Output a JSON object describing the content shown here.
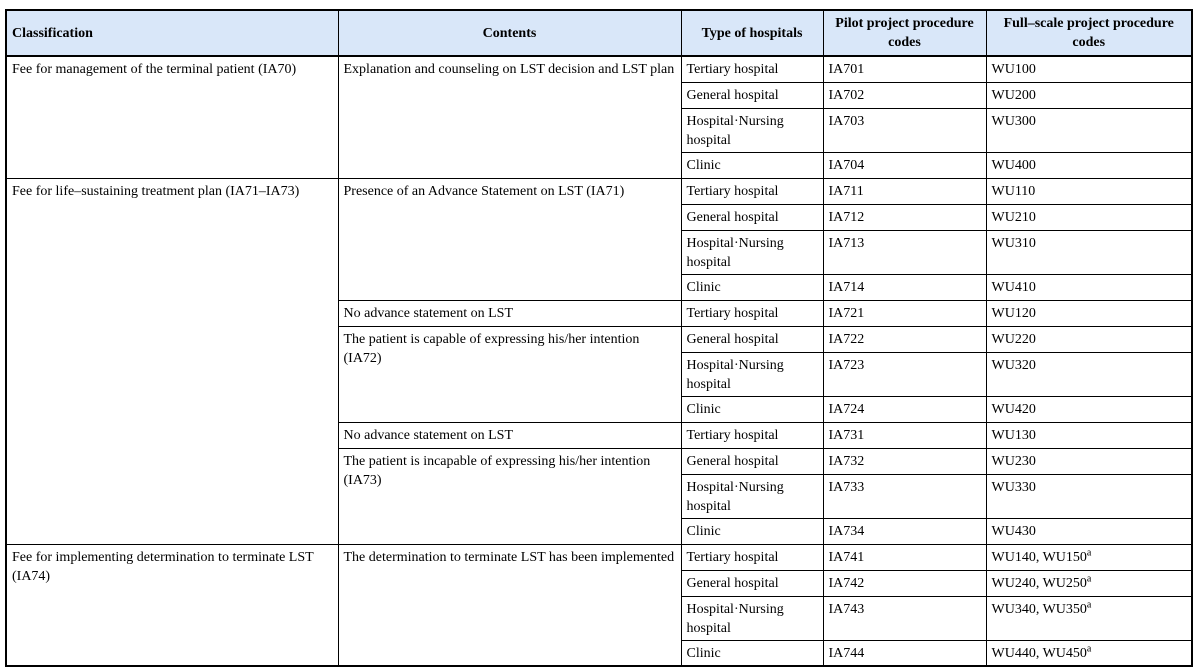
{
  "table": {
    "header_bg": "#d9e7f9",
    "border_color": "#000000",
    "headers": {
      "classification": "Classification",
      "contents": "Contents",
      "hospital_type": "Type of hospitals",
      "pilot_codes": "Pilot project procedure codes",
      "full_scale_codes": "Full–scale project procedure codes"
    },
    "classifications": [
      {
        "label": "Fee for management of the terminal patient (IA70)"
      },
      {
        "label": "Fee for life–sustaining treatment plan (IA71–IA73)"
      },
      {
        "label": "Fee for implementing determination to terminate LST (IA74)"
      }
    ],
    "contents_cells": [
      {
        "label": "Explanation and counseling on LST decision and LST plan"
      },
      {
        "label": "Presence of an Advance Statement on LST (IA71)"
      },
      {
        "label": "No advance statement on LST"
      },
      {
        "label": "The patient is capable of expressing his/her intention (IA72)"
      },
      {
        "label": "No advance statement on LST"
      },
      {
        "label": "The patient is incapable of expressing his/her intention (IA73)"
      },
      {
        "label": "The determination to terminate LST has been implemented"
      }
    ],
    "rows": [
      {
        "hospital": "Tertiary hospital",
        "pilot": "IA701",
        "full": "WU100",
        "full_sup": ""
      },
      {
        "hospital": "General hospital",
        "pilot": "IA702",
        "full": "WU200",
        "full_sup": ""
      },
      {
        "hospital": "Hospital·Nursing hospital",
        "pilot": "IA703",
        "full": "WU300",
        "full_sup": ""
      },
      {
        "hospital": "Clinic",
        "pilot": "IA704",
        "full": "WU400",
        "full_sup": ""
      },
      {
        "hospital": "Tertiary hospital",
        "pilot": "IA711",
        "full": "WU110",
        "full_sup": ""
      },
      {
        "hospital": "General hospital",
        "pilot": "IA712",
        "full": "WU210",
        "full_sup": ""
      },
      {
        "hospital": "Hospital·Nursing hospital",
        "pilot": "IA713",
        "full": "WU310",
        "full_sup": ""
      },
      {
        "hospital": "Clinic",
        "pilot": "IA714",
        "full": "WU410",
        "full_sup": ""
      },
      {
        "hospital": "Tertiary hospital",
        "pilot": "IA721",
        "full": "WU120",
        "full_sup": ""
      },
      {
        "hospital": "General hospital",
        "pilot": "IA722",
        "full": "WU220",
        "full_sup": ""
      },
      {
        "hospital": "Hospital·Nursing hospital",
        "pilot": "IA723",
        "full": "WU320",
        "full_sup": ""
      },
      {
        "hospital": "Clinic",
        "pilot": "IA724",
        "full": "WU420",
        "full_sup": ""
      },
      {
        "hospital": "Tertiary hospital",
        "pilot": "IA731",
        "full": "WU130",
        "full_sup": ""
      },
      {
        "hospital": "General hospital",
        "pilot": "IA732",
        "full": "WU230",
        "full_sup": ""
      },
      {
        "hospital": "Hospital·Nursing hospital",
        "pilot": "IA733",
        "full": "WU330",
        "full_sup": ""
      },
      {
        "hospital": "Clinic",
        "pilot": "IA734",
        "full": "WU430",
        "full_sup": ""
      },
      {
        "hospital": "Tertiary hospital",
        "pilot": "IA741",
        "full": "WU140, WU150",
        "full_sup": "a"
      },
      {
        "hospital": "General hospital",
        "pilot": "IA742",
        "full": "WU240, WU250",
        "full_sup": "a"
      },
      {
        "hospital": "Hospital·Nursing hospital",
        "pilot": "IA743",
        "full": "WU340, WU350",
        "full_sup": "a"
      },
      {
        "hospital": "Clinic",
        "pilot": "IA744",
        "full": "WU440, WU450",
        "full_sup": "a"
      }
    ]
  }
}
